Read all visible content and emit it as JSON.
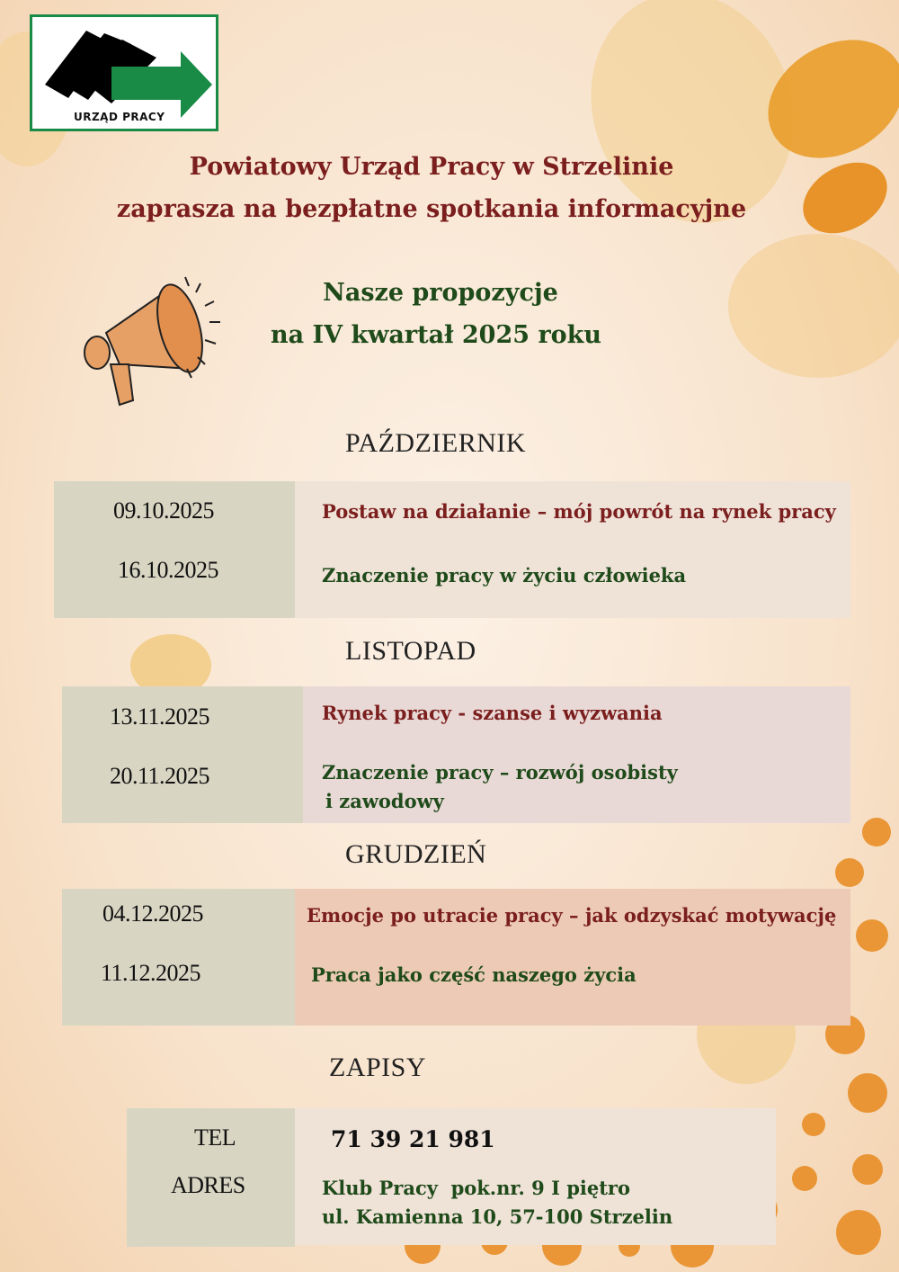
{
  "logo": {
    "text": "URZĄD PRACY"
  },
  "header": {
    "line1": "Powiatowy Urząd Pracy w Strzelinie",
    "line2": "zaprasza na bezpłatne spotkania informacyjne"
  },
  "subtitle": {
    "line1": "Nasze propozycje",
    "line2": "na IV kwartał 2025 roku"
  },
  "months": [
    {
      "name": "PAŹDZIERNIK",
      "events": [
        {
          "date": "09.10.2025",
          "topic": "Postaw na działanie – mój powrót na rynek pracy"
        },
        {
          "date": "16.10.2025",
          "topic": "Znaczenie pracy w życiu człowieka"
        }
      ]
    },
    {
      "name": "LISTOPAD",
      "events": [
        {
          "date": "13.11.2025",
          "topic": "Rynek pracy - szanse i wyzwania"
        },
        {
          "date": "20.11.2025",
          "topic": "Znaczenie pracy – rozwój osobisty",
          "topic2": "i zawodowy"
        }
      ]
    },
    {
      "name": "GRUDZIEŃ",
      "events": [
        {
          "date": "04.12.2025",
          "topic": "Emocje po utracie pracy – jak odzyskać motywację"
        },
        {
          "date": "11.12.2025",
          "topic": "Praca jako część naszego życia"
        }
      ]
    }
  ],
  "signup": {
    "heading": "ZAPISY",
    "tel_label": "TEL",
    "address_label": "ADRES",
    "tel": "71 39 21 981",
    "address1": "Klub Pracy  pok.nr. 9 I piętro",
    "address2": "ul. Kamienna 10, 57-100 Strzelin"
  },
  "colors": {
    "title": "#7b1e1e",
    "accent": "#1f4a1a",
    "logo_green": "#1a8a47"
  }
}
